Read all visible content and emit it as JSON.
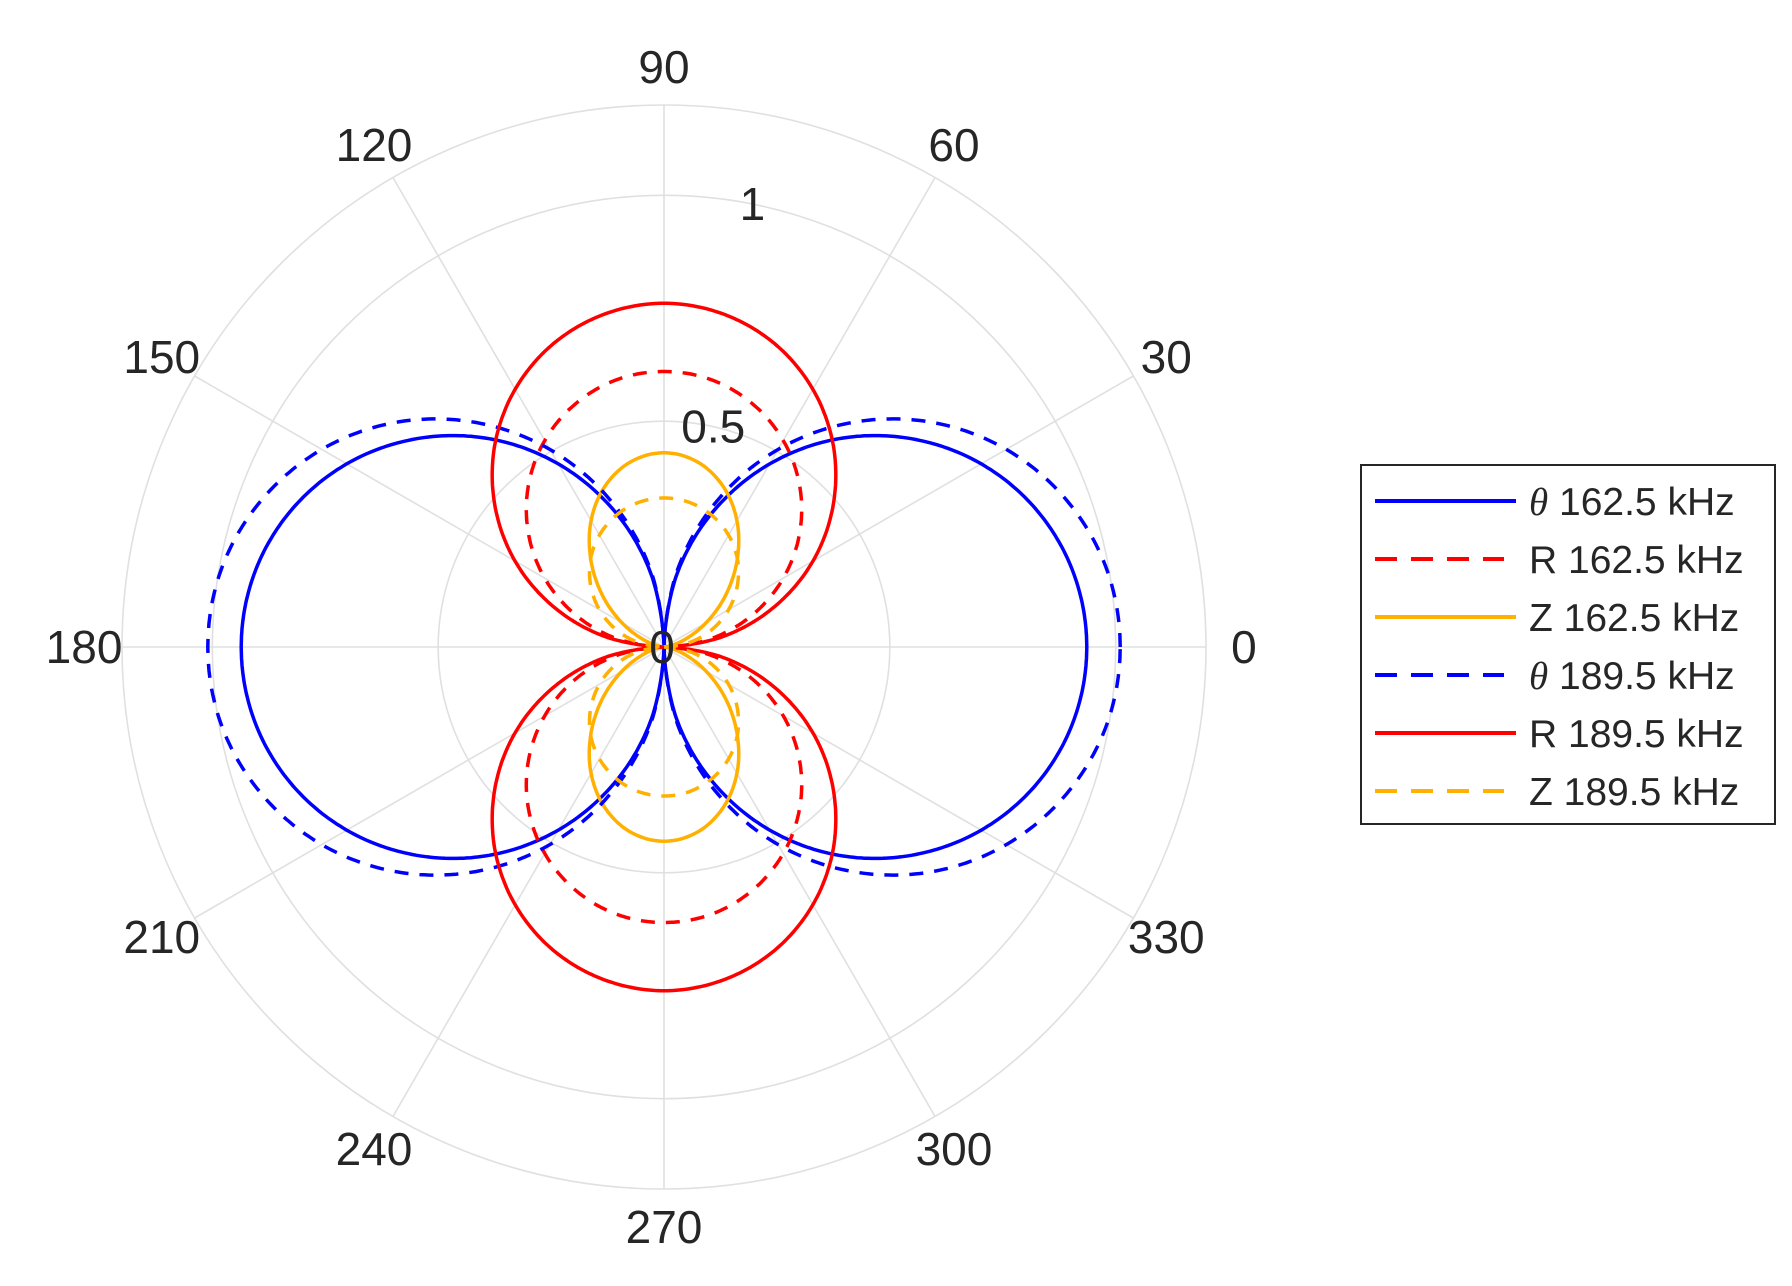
{
  "chart_data": {
    "type": "polar-line",
    "title": "",
    "theta_unit": "degrees",
    "theta_ticks": [
      0,
      30,
      60,
      90,
      120,
      150,
      180,
      210,
      240,
      270,
      300,
      330
    ],
    "theta_tick_labels": [
      "0",
      "30",
      "60",
      "90",
      "120",
      "150",
      "180",
      "210",
      "240",
      "270",
      "300",
      "330"
    ],
    "r_ticks": [
      0,
      0.5,
      1
    ],
    "r_tick_labels": [
      "0",
      "0.5",
      "1"
    ],
    "rlim": [
      0,
      1.2
    ],
    "grid": true,
    "legend_placement": "right",
    "theta": [
      0,
      10,
      20,
      30,
      40,
      50,
      60,
      70,
      80,
      90,
      100,
      110,
      120,
      130,
      140,
      150,
      160,
      170,
      180,
      190,
      200,
      210,
      220,
      230,
      240,
      250,
      260,
      270,
      280,
      290,
      300,
      310,
      320,
      330,
      340,
      350,
      360
    ],
    "series": [
      {
        "name": "θ 162.5 kHz",
        "color": "#0000ff",
        "style": "solid",
        "r": [
          0.936,
          0.922,
          0.88,
          0.811,
          0.717,
          0.602,
          0.468,
          0.32,
          0.163,
          0,
          0.163,
          0.32,
          0.468,
          0.602,
          0.717,
          0.811,
          0.88,
          0.922,
          0.936,
          0.922,
          0.88,
          0.811,
          0.717,
          0.602,
          0.468,
          0.32,
          0.163,
          0,
          0.163,
          0.32,
          0.468,
          0.602,
          0.717,
          0.811,
          0.88,
          0.922,
          0.936
        ]
      },
      {
        "name": "R 162.5 kHz",
        "color": "#ff0000",
        "style": "dashed",
        "r": [
          0,
          0.106,
          0.209,
          0.305,
          0.392,
          0.467,
          0.528,
          0.573,
          0.601,
          0.61,
          0.601,
          0.573,
          0.528,
          0.467,
          0.392,
          0.305,
          0.209,
          0.106,
          0,
          0.106,
          0.209,
          0.305,
          0.392,
          0.467,
          0.528,
          0.573,
          0.601,
          0.61,
          0.601,
          0.573,
          0.528,
          0.467,
          0.392,
          0.305,
          0.209,
          0.106,
          0
        ]
      },
      {
        "name": "Z 162.5 kHz",
        "color": "#ffb000",
        "style": "solid",
        "r": [
          0,
          0.013,
          0.05,
          0.108,
          0.178,
          0.252,
          0.323,
          0.38,
          0.417,
          0.43,
          0.417,
          0.38,
          0.323,
          0.252,
          0.178,
          0.108,
          0.05,
          0.013,
          0,
          0.013,
          0.05,
          0.108,
          0.178,
          0.252,
          0.323,
          0.38,
          0.417,
          0.43,
          0.417,
          0.38,
          0.323,
          0.252,
          0.178,
          0.108,
          0.05,
          0.013,
          0
        ]
      },
      {
        "name": "θ 189.5 kHz",
        "color": "#0000ff",
        "style": "dashed",
        "r": [
          1.01,
          0.995,
          0.949,
          0.875,
          0.774,
          0.649,
          0.505,
          0.345,
          0.175,
          0,
          0.175,
          0.345,
          0.505,
          0.649,
          0.774,
          0.875,
          0.949,
          0.995,
          1.01,
          0.995,
          0.949,
          0.875,
          0.774,
          0.649,
          0.505,
          0.345,
          0.175,
          0,
          0.175,
          0.345,
          0.505,
          0.649,
          0.774,
          0.875,
          0.949,
          0.995,
          1.01
        ]
      },
      {
        "name": "R 189.5 kHz",
        "color": "#ff0000",
        "style": "solid",
        "r": [
          0,
          0.132,
          0.26,
          0.381,
          0.489,
          0.583,
          0.659,
          0.715,
          0.749,
          0.761,
          0.749,
          0.715,
          0.659,
          0.583,
          0.489,
          0.381,
          0.26,
          0.132,
          0,
          0.132,
          0.26,
          0.381,
          0.489,
          0.583,
          0.659,
          0.715,
          0.749,
          0.761,
          0.749,
          0.715,
          0.659,
          0.583,
          0.489,
          0.381,
          0.26,
          0.132,
          0
        ]
      },
      {
        "name": "Z 189.5 kHz",
        "color": "#ffb000",
        "style": "dashed",
        "r": [
          0,
          0.057,
          0.113,
          0.165,
          0.212,
          0.253,
          0.286,
          0.31,
          0.325,
          0.33,
          0.325,
          0.31,
          0.286,
          0.253,
          0.212,
          0.165,
          0.113,
          0.057,
          0,
          0.057,
          0.113,
          0.165,
          0.212,
          0.253,
          0.286,
          0.31,
          0.325,
          0.33,
          0.325,
          0.31,
          0.286,
          0.253,
          0.212,
          0.165,
          0.113,
          0.057,
          0
        ]
      }
    ]
  }
}
